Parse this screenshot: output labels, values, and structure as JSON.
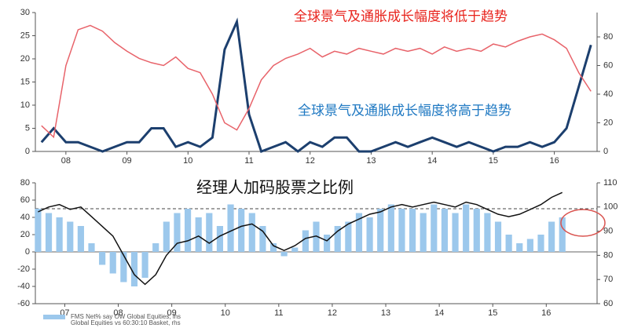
{
  "chart_data": [
    {
      "type": "line",
      "x": [
        2008.1,
        2008.3,
        2008.5,
        2008.7,
        2008.9,
        2009.1,
        2009.3,
        2009.5,
        2009.7,
        2009.9,
        2010.1,
        2010.3,
        2010.5,
        2010.7,
        2010.9,
        2011.1,
        2011.3,
        2011.5,
        2011.7,
        2011.9,
        2012.1,
        2012.3,
        2012.5,
        2012.7,
        2012.9,
        2013.1,
        2013.3,
        2013.5,
        2013.7,
        2013.9,
        2014.1,
        2014.3,
        2014.5,
        2014.7,
        2014.9,
        2015.1,
        2015.3,
        2015.5,
        2015.7,
        2015.9,
        2016.1,
        2016.3,
        2016.5,
        2016.7,
        2016.9,
        2017.1
      ],
      "xlim": [
        2008,
        2017.2
      ],
      "xticks": [
        {
          "value": 2008.5,
          "label": "08"
        },
        {
          "value": 2009.5,
          "label": "09"
        },
        {
          "value": 2010.5,
          "label": "10"
        },
        {
          "value": 2011.5,
          "label": "11"
        },
        {
          "value": 2012.5,
          "label": "12"
        },
        {
          "value": 2013.5,
          "label": "13"
        },
        {
          "value": 2014.5,
          "label": "14"
        },
        {
          "value": 2015.5,
          "label": "15"
        },
        {
          "value": 2016.5,
          "label": "16"
        }
      ],
      "ylim": [
        0,
        30
      ],
      "yticks": [
        0,
        5,
        10,
        15,
        20,
        25,
        30
      ],
      "y2lim": [
        0,
        97
      ],
      "y2ticks": [
        0,
        20,
        40,
        60,
        80
      ],
      "series": [
        {
          "name": "全球景气及通胀成长幅度将高于趋势",
          "color": "#1c3f6e",
          "label_color": "#1e78c2",
          "values": [
            2,
            5,
            2,
            2,
            1,
            0,
            1,
            2,
            2,
            5,
            5,
            1,
            2,
            1,
            3,
            22,
            28,
            8,
            0,
            1,
            2,
            0,
            2,
            1,
            3,
            3,
            0,
            0,
            1,
            2,
            1,
            2,
            3,
            2,
            1,
            2,
            1,
            0,
            1,
            1,
            2,
            1,
            2,
            5,
            14,
            23
          ]
        },
        {
          "name": "全球景气及通胀成长幅度将低于趋势",
          "color": "#e8636a",
          "label_color": "#e8231c",
          "axis": "y2",
          "values": [
            18,
            10,
            60,
            85,
            88,
            84,
            76,
            70,
            65,
            62,
            60,
            66,
            58,
            55,
            40,
            20,
            15,
            30,
            50,
            60,
            65,
            68,
            72,
            66,
            70,
            68,
            72,
            70,
            68,
            72,
            70,
            72,
            68,
            73,
            70,
            72,
            70,
            75,
            73,
            77,
            80,
            82,
            78,
            72,
            55,
            42
          ]
        }
      ]
    },
    {
      "type": "combo",
      "title": "经理人加码股票之比例",
      "x": [
        2007.0,
        2007.2,
        2007.4,
        2007.6,
        2007.8,
        2008.0,
        2008.2,
        2008.4,
        2008.6,
        2008.8,
        2009.0,
        2009.2,
        2009.4,
        2009.6,
        2009.8,
        2010.0,
        2010.2,
        2010.4,
        2010.6,
        2010.8,
        2011.0,
        2011.2,
        2011.4,
        2011.6,
        2011.8,
        2012.0,
        2012.2,
        2012.4,
        2012.6,
        2012.8,
        2013.0,
        2013.2,
        2013.4,
        2013.6,
        2013.8,
        2014.0,
        2014.2,
        2014.4,
        2014.6,
        2014.8,
        2015.0,
        2015.2,
        2015.4,
        2015.6,
        2015.8,
        2016.0,
        2016.2,
        2016.4,
        2016.6,
        2016.8
      ],
      "xlim": [
        2006.95,
        2017.45
      ],
      "xticks": [
        {
          "value": 2007.5,
          "label": "07"
        },
        {
          "value": 2008.5,
          "label": "08"
        },
        {
          "value": 2009.5,
          "label": "09"
        },
        {
          "value": 2010.5,
          "label": "10"
        },
        {
          "value": 2011.5,
          "label": "11"
        },
        {
          "value": 2012.5,
          "label": "12"
        },
        {
          "value": 2013.5,
          "label": "13"
        },
        {
          "value": 2014.5,
          "label": "14"
        },
        {
          "value": 2015.5,
          "label": "15"
        },
        {
          "value": 2016.5,
          "label": "16"
        }
      ],
      "ylim": [
        -60,
        80
      ],
      "yticks": [
        -60,
        -40,
        -20,
        0,
        20,
        40,
        60,
        80
      ],
      "y2lim": [
        60,
        110
      ],
      "y2ticks": [
        60,
        70,
        80,
        90,
        100,
        110
      ],
      "reference_line": 50,
      "series": [
        {
          "name": "FMS Net% say OW Global Equities, lhs",
          "type": "bar",
          "color": "#9cc8ec",
          "values": [
            50,
            45,
            40,
            35,
            30,
            10,
            -15,
            -25,
            -35,
            -40,
            -30,
            10,
            35,
            45,
            50,
            40,
            45,
            30,
            55,
            50,
            45,
            30,
            10,
            -5,
            5,
            25,
            35,
            20,
            30,
            35,
            45,
            40,
            50,
            55,
            50,
            50,
            45,
            55,
            50,
            45,
            55,
            50,
            45,
            35,
            20,
            10,
            15,
            20,
            35,
            40
          ]
        },
        {
          "name": "Global Equities vs 60:30:10 Basket, rhs",
          "type": "line",
          "color": "#111111",
          "axis": "y2",
          "values": [
            98,
            100,
            101,
            99,
            100,
            96,
            92,
            88,
            80,
            72,
            68,
            72,
            80,
            85,
            86,
            88,
            85,
            88,
            90,
            92,
            93,
            90,
            84,
            82,
            84,
            87,
            88,
            86,
            90,
            93,
            95,
            97,
            98,
            100,
            101,
            100,
            101,
            102,
            101,
            100,
            102,
            101,
            99,
            97,
            96,
            97,
            99,
            101,
            104,
            106
          ]
        }
      ]
    }
  ]
}
